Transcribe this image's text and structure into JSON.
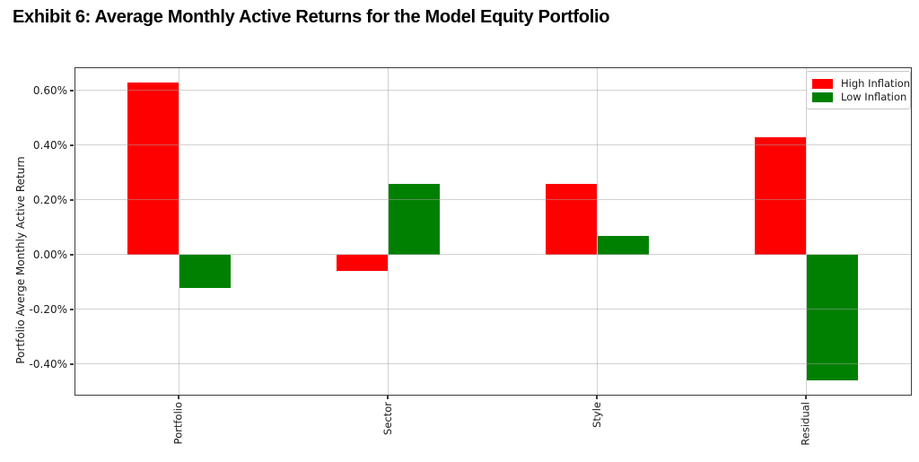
{
  "page": {
    "title": "Exhibit 6: Average Monthly Active Returns for the Model Equity Portfolio"
  },
  "chart_data": {
    "type": "bar",
    "categories": [
      "Portfolio",
      "Sector",
      "Style",
      "Residual"
    ],
    "series": [
      {
        "name": "High Inflation",
        "color": "#ff0000",
        "values": [
          0.63,
          -0.06,
          0.26,
          0.43
        ]
      },
      {
        "name": "Low Inflation",
        "color": "#008000",
        "values": [
          -0.12,
          0.26,
          0.07,
          -0.46
        ]
      }
    ],
    "ylabel": "Portfolio Averge Monthly Active Return",
    "yticks": [
      {
        "value": 0.6,
        "label": "0.60%"
      },
      {
        "value": 0.4,
        "label": "0.40%"
      },
      {
        "value": 0.2,
        "label": "0.20%"
      },
      {
        "value": 0.0,
        "label": "0.00%"
      },
      {
        "value": -0.2,
        "label": "-0.20%"
      },
      {
        "value": -0.4,
        "label": "-0.40%"
      }
    ],
    "ylim": [
      -0.515,
      0.685
    ],
    "grid": true,
    "legend_position": "upper right",
    "unit": "percent"
  }
}
